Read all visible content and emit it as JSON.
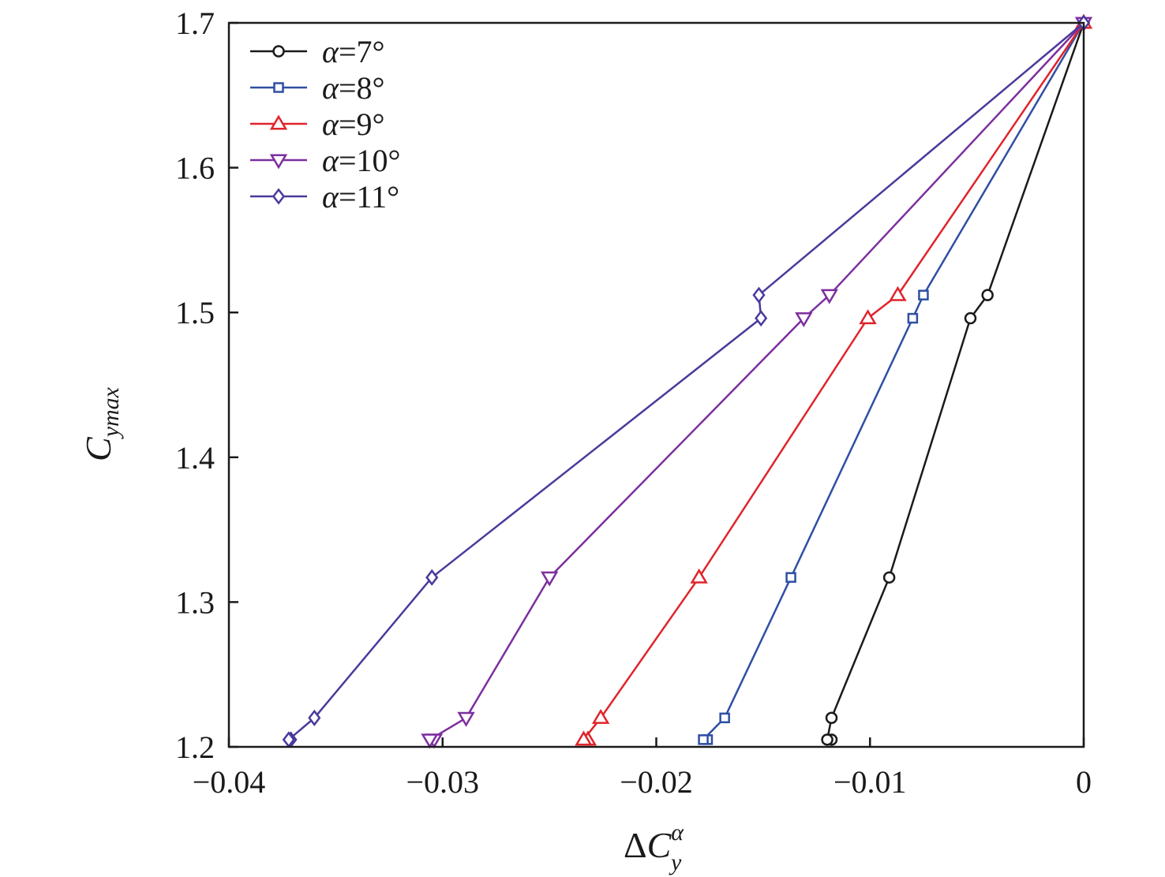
{
  "chart_data": {
    "type": "line",
    "title": "",
    "xlabel": {
      "prefix": "Δ",
      "main": "C",
      "sub": "y",
      "sup": "α"
    },
    "ylabel": {
      "main": "C",
      "sub": "ymax"
    },
    "xlim": [
      -0.04,
      0
    ],
    "ylim": [
      1.2,
      1.7
    ],
    "x_ticks": [
      -0.04,
      -0.03,
      -0.02,
      -0.01,
      0
    ],
    "x_tick_labels": [
      "−0.04",
      "−0.03",
      "−0.02",
      "−0.01",
      "0"
    ],
    "y_ticks": [
      1.2,
      1.3,
      1.4,
      1.5,
      1.6,
      1.7
    ],
    "y_tick_labels": [
      "1.2",
      "1.3",
      "1.4",
      "1.5",
      "1.6",
      "1.7"
    ],
    "grid": false,
    "legend_position": "top-left",
    "series": [
      {
        "name": "α=7°",
        "name_symbol": "α",
        "name_value": "=7°",
        "marker": "circle",
        "color": "#1a1a1a",
        "points": [
          [
            -0.0118,
            1.205
          ],
          [
            -0.012,
            1.205
          ],
          [
            -0.0118,
            1.22
          ],
          [
            -0.0091,
            1.317
          ],
          [
            -0.0053,
            1.496
          ],
          [
            -0.0045,
            1.512
          ],
          [
            0,
            1.7
          ]
        ]
      },
      {
        "name": "α=8°",
        "name_symbol": "α",
        "name_value": "=8°",
        "marker": "square",
        "color": "#2e4fa3",
        "points": [
          [
            -0.0176,
            1.205
          ],
          [
            -0.0178,
            1.205
          ],
          [
            -0.0168,
            1.22
          ],
          [
            -0.0137,
            1.317
          ],
          [
            -0.008,
            1.496
          ],
          [
            -0.0075,
            1.512
          ],
          [
            0,
            1.7
          ]
        ]
      },
      {
        "name": "α=9°",
        "name_symbol": "α",
        "name_value": "=9°",
        "marker": "triangle-up",
        "color": "#e0242b",
        "points": [
          [
            -0.0232,
            1.205
          ],
          [
            -0.0234,
            1.205
          ],
          [
            -0.0226,
            1.22
          ],
          [
            -0.018,
            1.317
          ],
          [
            -0.0101,
            1.496
          ],
          [
            -0.0087,
            1.512
          ],
          [
            0,
            1.7
          ]
        ]
      },
      {
        "name": "α=10°",
        "name_symbol": "α",
        "name_value": "=10°",
        "marker": "triangle-down",
        "color": "#7d2f9e",
        "points": [
          [
            -0.0304,
            1.205
          ],
          [
            -0.0306,
            1.205
          ],
          [
            -0.0289,
            1.22
          ],
          [
            -0.025,
            1.317
          ],
          [
            -0.0131,
            1.496
          ],
          [
            -0.0119,
            1.512
          ],
          [
            0,
            1.7
          ]
        ]
      },
      {
        "name": "α=11°",
        "name_symbol": "α",
        "name_value": "=11°",
        "marker": "diamond",
        "color": "#4a3a9c",
        "points": [
          [
            -0.0371,
            1.205
          ],
          [
            -0.0372,
            1.205
          ],
          [
            -0.036,
            1.22
          ],
          [
            -0.0305,
            1.317
          ],
          [
            -0.0151,
            1.496
          ],
          [
            -0.0152,
            1.512
          ],
          [
            0,
            1.7
          ]
        ]
      }
    ]
  }
}
